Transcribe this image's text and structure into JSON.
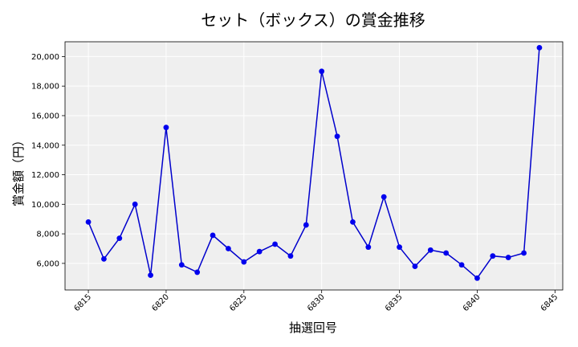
{
  "chart_data": {
    "type": "line",
    "title": "セット（ボックス）の賞金推移",
    "xlabel": "抽選回号",
    "ylabel": "賞金額（円）",
    "xlim": [
      6813.5,
      6845.5
    ],
    "ylim": [
      4200,
      21000
    ],
    "xticks": [
      6815,
      6820,
      6825,
      6830,
      6835,
      6840,
      6845
    ],
    "yticks": [
      6000,
      8000,
      10000,
      12000,
      14000,
      16000,
      18000,
      20000
    ],
    "grid": true,
    "line_color": "#0000cc",
    "marker_color": "#0000ee",
    "background_color": "#efefef",
    "series": [
      {
        "x": [
          6815,
          6816,
          6817,
          6818,
          6819,
          6820,
          6821,
          6822,
          6823,
          6824,
          6825,
          6826,
          6827,
          6828,
          6829,
          6830,
          6831,
          6832,
          6833,
          6834,
          6835,
          6836,
          6837,
          6838,
          6839,
          6840,
          6841,
          6842,
          6843,
          6844
        ],
        "values": [
          8800,
          6300,
          7700,
          10000,
          5200,
          15200,
          5900,
          5400,
          7900,
          7000,
          6100,
          6800,
          7300,
          6500,
          8600,
          19000,
          14600,
          8800,
          7100,
          10500,
          7100,
          5800,
          6900,
          6700,
          5900,
          5000,
          6500,
          6400,
          6700,
          20600
        ]
      }
    ]
  }
}
